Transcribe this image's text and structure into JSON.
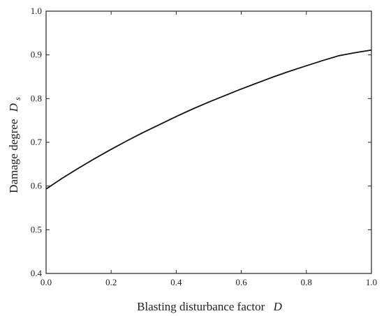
{
  "chart_data": {
    "type": "line",
    "xlabel": "Blasting disturbance factor",
    "xlabel_symbol": "D",
    "ylabel": "Damage degree",
    "ylabel_symbol": "D",
    "ylabel_subscript": "s",
    "xlim": [
      0.0,
      1.0
    ],
    "ylim": [
      0.4,
      1.0
    ],
    "xticks": [
      "0.0",
      "0.2",
      "0.4",
      "0.6",
      "0.8",
      "1.0"
    ],
    "yticks": [
      "0.4",
      "0.5",
      "0.6",
      "0.7",
      "0.8",
      "0.9",
      "1.0"
    ],
    "grid": false,
    "legend": "none",
    "series": [
      {
        "color": "#111111",
        "x": [
          0.0,
          0.05,
          0.1,
          0.15,
          0.2,
          0.25,
          0.3,
          0.35,
          0.4,
          0.45,
          0.5,
          0.55,
          0.6,
          0.65,
          0.7,
          0.75,
          0.8,
          0.85,
          0.9,
          0.95,
          1.0
        ],
        "y": [
          0.593,
          0.618,
          0.641,
          0.663,
          0.684,
          0.704,
          0.723,
          0.741,
          0.759,
          0.776,
          0.792,
          0.807,
          0.822,
          0.836,
          0.85,
          0.863,
          0.875,
          0.887,
          0.898,
          0.905,
          0.911
        ]
      }
    ]
  }
}
